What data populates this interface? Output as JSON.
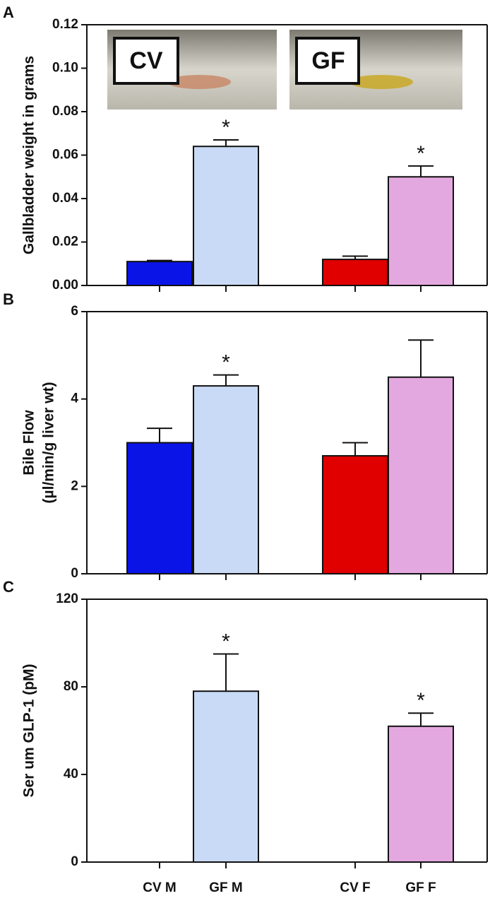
{
  "chart_data": [
    {
      "type": "bar",
      "panel": "A",
      "y_label": "Gallbladder weight in grams",
      "categories": [
        null,
        null,
        null,
        null
      ],
      "values": [
        0.011,
        0.064,
        0.012,
        0.05
      ],
      "errors": [
        0.0005,
        0.003,
        0.0015,
        0.005
      ],
      "significance": [
        null,
        "*",
        null,
        "*"
      ],
      "colors": [
        "#0a14e6",
        "#c8daf5",
        "#e00000",
        "#e4a8e0"
      ],
      "ylim": [
        0,
        0.12
      ],
      "yticks": [
        {
          "value": 0,
          "label": "0.00"
        },
        0.02,
        0.04,
        0.06,
        0.08,
        {
          "value": 0.1,
          "label": "0.10"
        },
        0.12
      ],
      "insets": [
        "CV",
        "GF"
      ]
    },
    {
      "type": "bar",
      "panel": "B",
      "y_label": [
        "Bile Flow",
        "(µl/min/g liver wt)"
      ],
      "categories": [
        null,
        null,
        null,
        null
      ],
      "values": [
        3.0,
        4.3,
        2.7,
        4.5
      ],
      "errors": [
        0.33,
        0.25,
        0.3,
        0.85
      ],
      "significance": [
        null,
        "*",
        null,
        null
      ],
      "colors": [
        "#0a14e6",
        "#c8daf5",
        "#e00000",
        "#e4a8e0"
      ],
      "ylim": [
        0,
        6
      ],
      "yticks": [
        0,
        2,
        4,
        6
      ]
    },
    {
      "type": "bar",
      "panel": "C",
      "y_label": "Ser um GLP-1  (pM)",
      "categories": [
        "CV M",
        "GF M",
        "CV F",
        "GF F"
      ],
      "values": [
        null,
        78,
        null,
        62
      ],
      "errors": [
        null,
        17,
        null,
        6
      ],
      "significance": [
        null,
        "*",
        null,
        "*"
      ],
      "colors": [
        "#0a14e6",
        "#c8daf5",
        "#e00000",
        "#e4a8e0"
      ],
      "ylim": [
        0,
        120
      ],
      "yticks": [
        0,
        40,
        80,
        120
      ]
    }
  ]
}
